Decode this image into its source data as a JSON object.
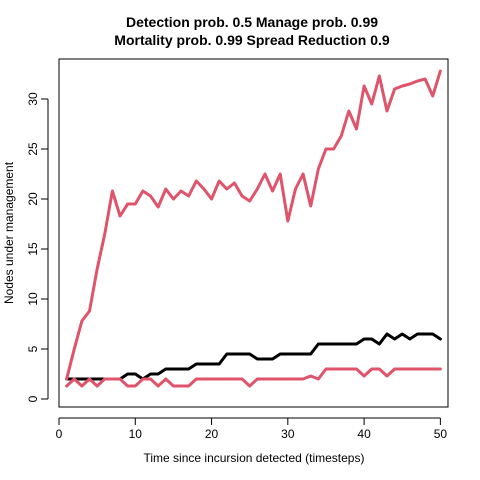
{
  "chart_data": {
    "type": "line",
    "title_line1": "Detection prob. 0.5 Manage prob. 0.99",
    "title_line2": "Mortality prob. 0.99 Spread Reduction 0.9",
    "xlabel": "Time since incursion detected (timesteps)",
    "ylabel": "Nodes under management",
    "xlim": [
      0,
      51
    ],
    "ylim": [
      -0.8,
      34
    ],
    "x_ticks": [
      0,
      10,
      20,
      30,
      40,
      50
    ],
    "y_ticks": [
      0,
      5,
      10,
      15,
      20,
      25,
      30
    ],
    "series": [
      {
        "color": "#000000",
        "x": [
          1,
          2,
          3,
          4,
          5,
          6,
          7,
          8,
          9,
          10,
          11,
          12,
          13,
          14,
          15,
          16,
          17,
          18,
          19,
          20,
          21,
          22,
          23,
          24,
          25,
          26,
          27,
          28,
          29,
          30,
          31,
          32,
          33,
          34,
          35,
          36,
          37,
          38,
          39,
          40,
          41,
          42,
          43,
          44,
          45,
          46,
          47,
          48,
          49,
          50
        ],
        "y": [
          2,
          2,
          2,
          2,
          2,
          2,
          2,
          2,
          2.5,
          2.5,
          2,
          2.5,
          2.5,
          3,
          3,
          3,
          3,
          3.5,
          3.5,
          3.5,
          3.5,
          4.5,
          4.5,
          4.5,
          4.5,
          4,
          4,
          4,
          4.5,
          4.5,
          4.5,
          4.5,
          4.5,
          5.5,
          5.5,
          5.5,
          5.5,
          5.5,
          5.5,
          6,
          6,
          5.5,
          6.5,
          6,
          6.5,
          6,
          6.5,
          6.5,
          6.5,
          6
        ]
      },
      {
        "color": "#DF536B",
        "x": [
          1,
          2,
          3,
          4,
          5,
          6,
          7,
          8,
          9,
          10,
          11,
          12,
          13,
          14,
          15,
          16,
          17,
          18,
          19,
          20,
          21,
          22,
          23,
          24,
          25,
          26,
          27,
          28,
          29,
          30,
          31,
          32,
          33,
          34,
          35,
          36,
          37,
          38,
          39,
          40,
          41,
          42,
          43,
          44,
          45,
          46,
          47,
          48,
          49,
          50
        ],
        "y": [
          2,
          5,
          7.8,
          8.8,
          13,
          16.5,
          20.8,
          18.3,
          19.5,
          19.5,
          20.8,
          20.3,
          19.2,
          21,
          20,
          20.8,
          20.3,
          21.8,
          21,
          20,
          21.8,
          21,
          21.6,
          20.3,
          19.8,
          21,
          22.5,
          20.8,
          22.5,
          17.8,
          21,
          22.5,
          19.3,
          23,
          25,
          25,
          26.3,
          28.8,
          27,
          31.3,
          29.5,
          32.3,
          28.8,
          31,
          31.3,
          31.5,
          31.8,
          32,
          30.3,
          32.8
        ]
      },
      {
        "color": "#DF536B",
        "x": [
          1,
          2,
          3,
          4,
          5,
          6,
          7,
          8,
          9,
          10,
          11,
          12,
          13,
          14,
          15,
          16,
          17,
          18,
          19,
          20,
          21,
          22,
          23,
          24,
          25,
          26,
          27,
          28,
          29,
          30,
          31,
          32,
          33,
          34,
          35,
          36,
          37,
          38,
          39,
          40,
          41,
          42,
          43,
          44,
          45,
          46,
          47,
          48,
          49,
          50
        ],
        "y": [
          1.3,
          2,
          1.3,
          2,
          1.3,
          2,
          2,
          2,
          1.3,
          1.3,
          2,
          2,
          1.3,
          2,
          1.3,
          1.3,
          1.3,
          2,
          2,
          2,
          2,
          2,
          2,
          2,
          1.3,
          2,
          2,
          2,
          2,
          2,
          2,
          2,
          2.3,
          2,
          3,
          3,
          3,
          3,
          3,
          2.3,
          3,
          3,
          2.3,
          3,
          3,
          3,
          3,
          3,
          3,
          3
        ]
      }
    ]
  }
}
